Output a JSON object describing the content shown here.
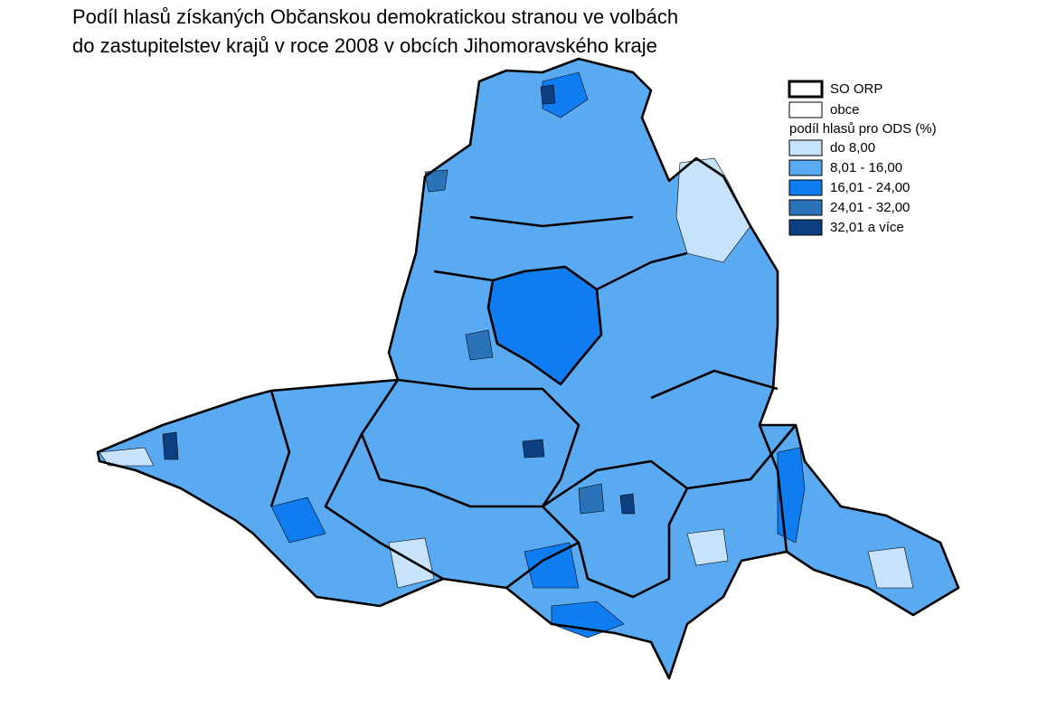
{
  "title": {
    "lines": [
      "Podíl hlasů získaných Občanskou demokratickou stranou ve volbách",
      "do zastupitelstev krajů v roce 2008 v obcích Jihomoravského kraje"
    ]
  },
  "legend": {
    "boundaries": [
      {
        "label": "SO ORP"
      },
      {
        "label": "obce"
      }
    ],
    "title": "podíl hlasů pro ODS (%)",
    "classes": [
      {
        "label": "do 8,00",
        "color": "#c6e3fb"
      },
      {
        "label": "8,01 - 16,00",
        "color": "#5aaaf2"
      },
      {
        "label": "16,01 - 24,00",
        "color": "#0f7cf0"
      },
      {
        "label": "24,01 - 32,00",
        "color": "#2b73b9"
      },
      {
        "label": "32,01 a více",
        "color": "#0b3f80"
      }
    ]
  }
}
